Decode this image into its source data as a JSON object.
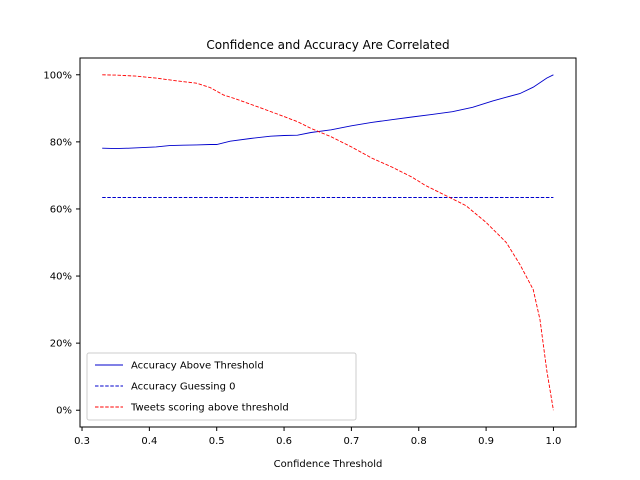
{
  "chart_data": {
    "type": "line",
    "title": "Confidence and Accuracy Are Correlated",
    "xlabel": "Confidence Threshold",
    "ylabel": "",
    "xlim": [
      0.3,
      1.0
    ],
    "ylim": [
      0.0,
      1.0
    ],
    "xticks": [
      {
        "value": 0.3,
        "label": "0.3"
      },
      {
        "value": 0.4,
        "label": "0.4"
      },
      {
        "value": 0.5,
        "label": "0.5"
      },
      {
        "value": 0.6,
        "label": "0.6"
      },
      {
        "value": 0.7,
        "label": "0.7"
      },
      {
        "value": 0.8,
        "label": "0.8"
      },
      {
        "value": 0.9,
        "label": "0.9"
      },
      {
        "value": 1.0,
        "label": "1.0"
      }
    ],
    "yticks": [
      {
        "value": 0.0,
        "label": "0%"
      },
      {
        "value": 0.2,
        "label": "20%"
      },
      {
        "value": 0.4,
        "label": "40%"
      },
      {
        "value": 0.6,
        "label": "60%"
      },
      {
        "value": 0.8,
        "label": "80%"
      },
      {
        "value": 1.0,
        "label": "100%"
      }
    ],
    "grid": false,
    "legend_position": "lower-left",
    "series": [
      {
        "name": "Accuracy Above Threshold",
        "color": "#0000cc",
        "style": "solid",
        "x": [
          0.33,
          0.35,
          0.37,
          0.39,
          0.41,
          0.43,
          0.45,
          0.47,
          0.49,
          0.5,
          0.52,
          0.55,
          0.58,
          0.6,
          0.62,
          0.64,
          0.67,
          0.7,
          0.73,
          0.76,
          0.79,
          0.82,
          0.85,
          0.88,
          0.91,
          0.93,
          0.95,
          0.97,
          0.99,
          1.0
        ],
        "y": [
          0.781,
          0.78,
          0.781,
          0.783,
          0.785,
          0.789,
          0.79,
          0.791,
          0.792,
          0.792,
          0.802,
          0.81,
          0.817,
          0.819,
          0.82,
          0.828,
          0.836,
          0.848,
          0.858,
          0.866,
          0.874,
          0.882,
          0.89,
          0.903,
          0.922,
          0.933,
          0.944,
          0.963,
          0.99,
          1.0
        ]
      },
      {
        "name": "Accuracy Guessing 0",
        "color": "#0000cc",
        "style": "dashed",
        "x": [
          0.33,
          1.0
        ],
        "y": [
          0.634,
          0.634
        ]
      },
      {
        "name": "Tweets scoring above threshold",
        "color": "#ff0000",
        "style": "dashed",
        "x": [
          0.33,
          0.35,
          0.38,
          0.41,
          0.44,
          0.47,
          0.49,
          0.51,
          0.53,
          0.56,
          0.59,
          0.62,
          0.64,
          0.67,
          0.7,
          0.73,
          0.76,
          0.79,
          0.81,
          0.84,
          0.87,
          0.9,
          0.93,
          0.95,
          0.97,
          0.98,
          0.99,
          1.0
        ],
        "y": [
          1.0,
          0.999,
          0.996,
          0.99,
          0.982,
          0.975,
          0.962,
          0.94,
          0.927,
          0.905,
          0.883,
          0.86,
          0.84,
          0.815,
          0.785,
          0.752,
          0.725,
          0.695,
          0.67,
          0.64,
          0.61,
          0.56,
          0.5,
          0.435,
          0.36,
          0.27,
          0.12,
          0.0
        ]
      }
    ]
  }
}
